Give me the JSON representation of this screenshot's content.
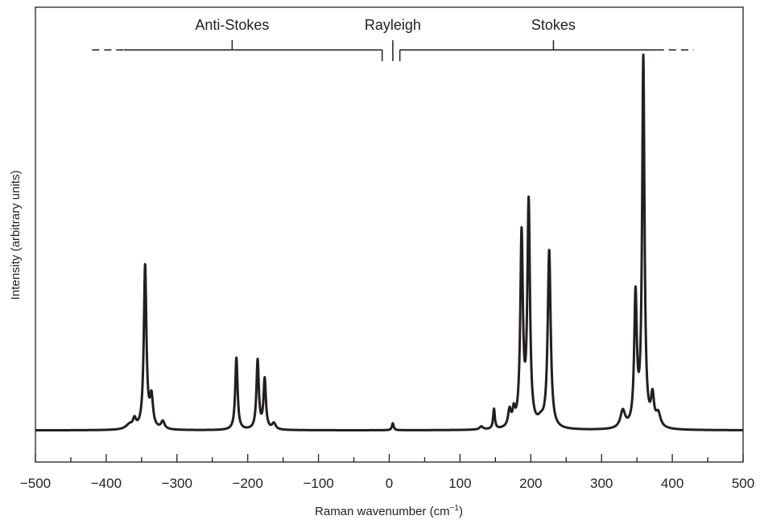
{
  "chart_data": {
    "type": "line",
    "title": "",
    "xlabel": "Raman wavenumber (cm",
    "xlabel_superscript": "−1",
    "xlabel_close": ")",
    "ylabel": "Intensity (arbitrary units)",
    "xlim": [
      -500,
      500
    ],
    "ylim": [
      0,
      1
    ],
    "x_ticks": [
      -500,
      -400,
      -300,
      -200,
      -100,
      0,
      100,
      200,
      300,
      400,
      500
    ],
    "x_tick_labels": [
      "−500",
      "−400",
      "−300",
      "−200",
      "−100",
      "0",
      "100",
      "200",
      "300",
      "400",
      "500"
    ],
    "y_ticks_shown": false,
    "grid": false,
    "line_color": "#231f20",
    "regions": [
      {
        "label": "Anti-Stokes",
        "from": -375,
        "to": -10,
        "center": -222,
        "dashed_extension": [
          -420,
          -375
        ]
      },
      {
        "label": "Rayleigh",
        "center": 5
      },
      {
        "label": "Stokes",
        "from": 15,
        "to": 378,
        "center": 232,
        "dashed_extension": [
          378,
          430
        ]
      }
    ],
    "baseline": 0.005,
    "series": [
      {
        "peaks": [
          {
            "center": -367,
            "height": 0.012,
            "width": 6
          },
          {
            "center": -360,
            "height": 0.022,
            "width": 2.5
          },
          {
            "center": -345,
            "height": 0.425,
            "width": 2.2
          },
          {
            "center": -336,
            "height": 0.078,
            "width": 2.6
          },
          {
            "center": -320,
            "height": 0.02,
            "width": 3
          },
          {
            "center": -216,
            "height": 0.188,
            "width": 2
          },
          {
            "center": -186,
            "height": 0.18,
            "width": 2
          },
          {
            "center": -176,
            "height": 0.13,
            "width": 2
          },
          {
            "center": -163,
            "height": 0.016,
            "width": 3
          },
          {
            "center": 5,
            "height": 0.018,
            "width": 1.5
          },
          {
            "center": 130,
            "height": 0.008,
            "width": 3
          },
          {
            "center": 148,
            "height": 0.052,
            "width": 1.5
          },
          {
            "center": 170,
            "height": 0.044,
            "width": 2.5
          },
          {
            "center": 176,
            "height": 0.037,
            "width": 2
          },
          {
            "center": 187,
            "height": 0.497,
            "width": 2.2
          },
          {
            "center": 197,
            "height": 0.58,
            "width": 2.2
          },
          {
            "center": 214,
            "height": 0.016,
            "width": 5
          },
          {
            "center": 226,
            "height": 0.462,
            "width": 2.5
          },
          {
            "center": 330,
            "height": 0.045,
            "width": 4
          },
          {
            "center": 348,
            "height": 0.34,
            "width": 2.2
          },
          {
            "center": 359,
            "height": 0.96,
            "width": 2
          },
          {
            "center": 372,
            "height": 0.075,
            "width": 2.5
          },
          {
            "center": 380,
            "height": 0.035,
            "width": 4
          }
        ]
      }
    ]
  }
}
